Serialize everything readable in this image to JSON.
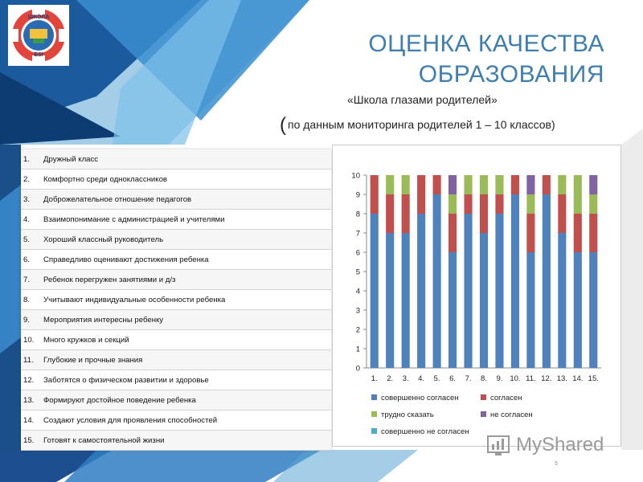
{
  "header": {
    "title_line1": "ОЦЕНКА КАЧЕСТВА",
    "title_line2": "ОБРАЗОВАНИЯ",
    "subtitle": "«Школа глазами родителей»",
    "source_open": "(",
    "source_text": "по данным мониторинга родителей 1 – 10 классов",
    "source_close": ")"
  },
  "logo": {
    "text_top": "ШКОЛА",
    "text_bottom": "ESI"
  },
  "items": [
    {
      "num": "1.",
      "text": "Дружный класс"
    },
    {
      "num": "2.",
      "text": "Комфортно среди одноклассников"
    },
    {
      "num": "3.",
      "text": "Доброжелательное отношение педагогов"
    },
    {
      "num": "4.",
      "text": "Взаимопонимание с администрацией и учителями"
    },
    {
      "num": "5.",
      "text": "Хороший классный руководитель"
    },
    {
      "num": "6.",
      "text": "Справедливо оценивают достижения ребенка"
    },
    {
      "num": "7.",
      "text": "Ребенок перегружен занятиями и д/з"
    },
    {
      "num": "8.",
      "text": "Учитывают индивидуальные особенности ребенка"
    },
    {
      "num": "9.",
      "text": "Мероприятия интересны ребенку"
    },
    {
      "num": "10.",
      "text": "Много кружков и секций"
    },
    {
      "num": "11.",
      "text": "Глубокие и прочные знания"
    },
    {
      "num": "12.",
      "text": "Заботятся о физическом развитии и здоровье"
    },
    {
      "num": "13.",
      "text": "Формируют достойное поведение ребенка"
    },
    {
      "num": "14.",
      "text": "Создают условия для проявления способностей"
    },
    {
      "num": "15.",
      "text": "Готовят к самостоятельной жизни"
    }
  ],
  "chart_data": {
    "type": "bar",
    "stacked": true,
    "categories": [
      "1.",
      "2.",
      "3.",
      "4.",
      "5.",
      "6.",
      "7.",
      "8.",
      "9.",
      "10.",
      "11.",
      "12.",
      "13.",
      "14.",
      "15."
    ],
    "ylim": [
      0,
      10
    ],
    "yticks": [
      0,
      1,
      2,
      3,
      4,
      5,
      6,
      7,
      8,
      9,
      10
    ],
    "grid": false,
    "legend_position": "bottom",
    "series": [
      {
        "name": "совершенно согласен",
        "color": "#4f81bd",
        "values": [
          8,
          7,
          7,
          8,
          9,
          6,
          8,
          7,
          8,
          9,
          6,
          9,
          7,
          6,
          6
        ]
      },
      {
        "name": "согласен",
        "color": "#c0504d",
        "values": [
          2,
          2,
          2,
          2,
          1,
          2,
          1,
          2,
          1,
          1,
          2,
          1,
          2,
          2,
          2
        ]
      },
      {
        "name": "трудно сказать",
        "color": "#9bbb59",
        "values": [
          0,
          1,
          1,
          0,
          0,
          1,
          1,
          1,
          1,
          0,
          1,
          0,
          1,
          2,
          1
        ]
      },
      {
        "name": "не согласен",
        "color": "#8064a2",
        "values": [
          0,
          0,
          0,
          0,
          0,
          1,
          0,
          0,
          0,
          0,
          1,
          0,
          0,
          0,
          1
        ]
      },
      {
        "name": "совершенно не согласен",
        "color": "#4bacc6",
        "values": [
          0,
          0,
          0,
          0,
          0,
          0,
          0,
          0,
          0,
          0,
          0,
          0,
          0,
          0,
          0
        ]
      }
    ]
  },
  "watermark": {
    "text": "MyShared",
    "icon": "myshared-logo-icon"
  },
  "page_number": "5"
}
